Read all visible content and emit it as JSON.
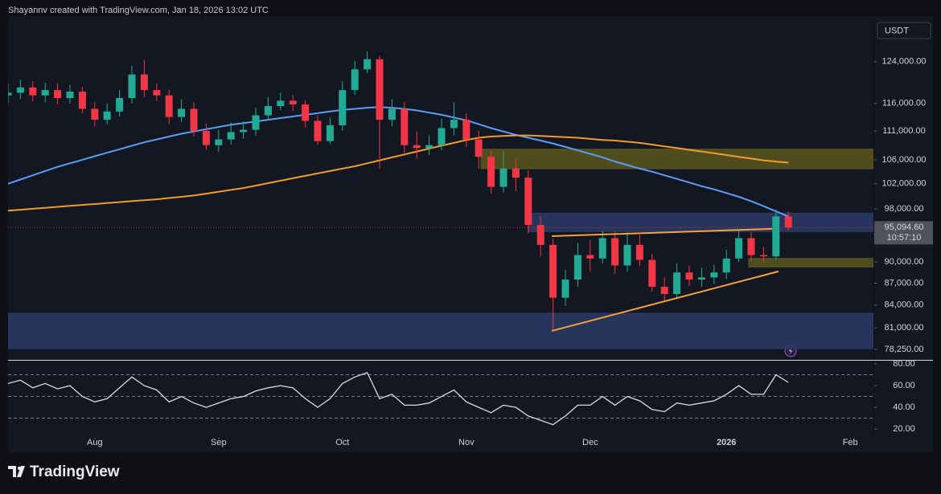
{
  "header": {
    "attribution": "Shayannv created with TradingView.com, Jan 18, 2026 13:02 UTC"
  },
  "footer": {
    "brand": "TradingView"
  },
  "chart_data": [
    {
      "type": "candlestick",
      "currency": "USDT",
      "log_scale": true,
      "last_label": "95,094.60",
      "countdown": "10:57:10",
      "up_color": "#22ab94",
      "down_color": "#f23645",
      "categories": [
        null,
        null,
        null,
        null,
        null,
        null,
        null,
        "Aug",
        null,
        null,
        null,
        null,
        null,
        null,
        null,
        null,
        null,
        "Sep",
        null,
        null,
        null,
        null,
        null,
        null,
        null,
        null,
        null,
        "Oct",
        null,
        null,
        null,
        null,
        null,
        null,
        null,
        null,
        null,
        "Nov",
        null,
        null,
        null,
        null,
        null,
        null,
        null,
        null,
        null,
        "Dec",
        null,
        null,
        null,
        null,
        null,
        null,
        null,
        null,
        null,
        null,
        "2026",
        null,
        null,
        null,
        null,
        null,
        null,
        null,
        null,
        null,
        "Feb",
        null
      ],
      "open": [
        117500,
        118000,
        119000,
        117500,
        118500,
        117000,
        118200,
        115000,
        113000,
        114500,
        117000,
        121500,
        118500,
        117500,
        113500,
        115000,
        111000,
        108500,
        109500,
        110800,
        111200,
        113800,
        115500,
        116500,
        115800,
        112800,
        109200,
        112000,
        118500,
        122500,
        124500,
        113000,
        115000,
        108500,
        108000,
        108500,
        111500,
        113000,
        109500,
        106500,
        101500,
        104500,
        103000,
        95500,
        92500,
        85000,
        87500,
        91000,
        90500,
        93500,
        89500,
        92500,
        90300,
        86500,
        85500,
        88500,
        87500,
        87800,
        88500,
        90500,
        93500,
        91000,
        90800,
        96800,
        null,
        null,
        null,
        null,
        null,
        null
      ],
      "high": [
        119800,
        120500,
        120200,
        119900,
        119800,
        119500,
        119200,
        116200,
        116000,
        118500,
        123200,
        124400,
        119800,
        118600,
        116800,
        116200,
        112300,
        111200,
        112500,
        112700,
        115200,
        117200,
        118000,
        117600,
        116600,
        113800,
        113400,
        120200,
        124200,
        126100,
        125200,
        116800,
        116300,
        110900,
        110200,
        113200,
        116200,
        114200,
        111000,
        107500,
        107400,
        106000,
        104200,
        96800,
        93400,
        88900,
        92800,
        93200,
        94600,
        94500,
        94400,
        94000,
        91200,
        87800,
        89800,
        89500,
        89200,
        89600,
        91800,
        94800,
        94400,
        92200,
        97900,
        97600,
        null,
        null,
        null,
        null,
        null,
        null
      ],
      "low": [
        116000,
        116800,
        116400,
        116200,
        115800,
        116000,
        114200,
        111800,
        112200,
        113600,
        116000,
        117200,
        116400,
        112200,
        112600,
        110000,
        107600,
        107400,
        108600,
        109600,
        110200,
        112900,
        114800,
        114600,
        111600,
        108600,
        108700,
        111000,
        117600,
        121800,
        104500,
        111800,
        107200,
        106200,
        106800,
        107600,
        110200,
        108200,
        104500,
        100400,
        100600,
        100800,
        94200,
        90800,
        80600,
        83900,
        86500,
        88600,
        89800,
        88300,
        88600,
        89400,
        85800,
        84400,
        84800,
        86600,
        86500,
        86900,
        87600,
        90000,
        90200,
        89900,
        90300,
        94600,
        null,
        null,
        null,
        null,
        null,
        null
      ],
      "close": [
        118000,
        119000,
        117500,
        118500,
        117000,
        118200,
        115000,
        113000,
        114500,
        117000,
        121500,
        118500,
        117500,
        113500,
        115000,
        111000,
        108500,
        109500,
        110800,
        111200,
        113800,
        115500,
        116500,
        115800,
        112800,
        109200,
        112000,
        118500,
        122500,
        124500,
        113000,
        115000,
        108500,
        108000,
        108500,
        111500,
        113000,
        109500,
        106500,
        101500,
        104500,
        103000,
        95500,
        92500,
        85000,
        87500,
        91000,
        90500,
        93500,
        89500,
        92500,
        90300,
        86500,
        85500,
        88500,
        87500,
        87800,
        88500,
        90500,
        93500,
        91000,
        90800,
        96800,
        95094.6,
        null,
        null,
        null,
        null,
        null,
        null
      ],
      "series": [
        {
          "color": "#5b9cf6",
          "values": [
            102000,
            102700,
            103400,
            104100,
            104800,
            105400,
            106000,
            106600,
            107200,
            107800,
            108400,
            109000,
            109500,
            110000,
            110500,
            110900,
            111300,
            111700,
            112100,
            112400,
            112700,
            113000,
            113300,
            113600,
            113900,
            114200,
            114500,
            114800,
            115000,
            115200,
            115300,
            115200,
            115000,
            114700,
            114300,
            113900,
            113400,
            112900,
            112200,
            111500,
            110900,
            110300,
            109800,
            109300,
            108800,
            108200,
            107600,
            107000,
            106400,
            105700,
            105100,
            104500,
            104000,
            103400,
            102800,
            102200,
            101600,
            101100,
            100500,
            99900,
            99200,
            98400,
            97600,
            96800,
            null,
            null,
            null,
            null,
            null,
            null
          ]
        },
        {
          "color": "#f29b2c",
          "values": [
            97700,
            97850,
            98000,
            98150,
            98300,
            98450,
            98600,
            98750,
            98900,
            99050,
            99200,
            99350,
            99500,
            99700,
            99900,
            100100,
            100400,
            100700,
            101000,
            101300,
            101700,
            102100,
            102500,
            102900,
            103300,
            103700,
            104100,
            104500,
            104900,
            105400,
            105900,
            106400,
            106900,
            107400,
            107900,
            108400,
            108900,
            109400,
            109800,
            110000,
            110100,
            110200,
            110200,
            110100,
            110000,
            109900,
            109800,
            109600,
            109400,
            109300,
            109100,
            108900,
            108600,
            108300,
            108000,
            107700,
            107400,
            107100,
            106800,
            106500,
            106200,
            105900,
            105700,
            105500,
            null,
            null,
            null,
            null,
            null,
            null
          ]
        }
      ],
      "zones": [
        {
          "low": 78350,
          "high": 82900,
          "from": 0,
          "color": "#2b3a66"
        },
        {
          "low": 104500,
          "high": 107800,
          "from": 38.2,
          "color": "#5a561d"
        },
        {
          "low": 94500,
          "high": 97300,
          "from": 42,
          "color": "#2b3a66"
        },
        {
          "low": 89300,
          "high": 90500,
          "from": 59.8,
          "color": "#5a561d"
        }
      ],
      "trendlines": [
        {
          "x": [
            43.9,
            62.2
          ],
          "y": [
            80600,
            88650
          ],
          "color": "#f7a23c"
        },
        {
          "x": [
            43.9,
            61.7
          ],
          "y": [
            93800,
            94900
          ],
          "color": "#f7a23c"
        }
      ],
      "ylim": [
        76950,
        133400
      ],
      "yticks": [
        {
          "value": 124000,
          "label": "124,000.00"
        },
        {
          "value": 116000,
          "label": "116,000.00"
        },
        {
          "value": 111000,
          "label": "111,000.00"
        },
        {
          "value": 106000,
          "label": "106,000.00"
        },
        {
          "value": 102000,
          "label": "102,000.00"
        },
        {
          "value": 98000,
          "label": "98,000.00"
        },
        {
          "value": 90000,
          "label": "90,000.00"
        },
        {
          "value": 87000,
          "label": "87,000.00"
        },
        {
          "value": 84000,
          "label": "84,000.00"
        },
        {
          "value": 81000,
          "label": "81,000.00"
        },
        {
          "value": 78250,
          "label": "78,250.00"
        }
      ]
    },
    {
      "type": "line",
      "color": "#d9dde8",
      "values": [
        62,
        65,
        58,
        62,
        57,
        60,
        50,
        45,
        48,
        58,
        68,
        60,
        56,
        45,
        50,
        44,
        40,
        44,
        48,
        50,
        55,
        58,
        60,
        58,
        48,
        40,
        48,
        62,
        68,
        72,
        48,
        52,
        42,
        42,
        44,
        50,
        56,
        45,
        40,
        35,
        42,
        40,
        32,
        28,
        24,
        32,
        42,
        42,
        50,
        42,
        50,
        46,
        38,
        36,
        44,
        42,
        44,
        46,
        52,
        60,
        52,
        52,
        70,
        63,
        null,
        null,
        null,
        null,
        null,
        null
      ],
      "levels": [
        70,
        50,
        30
      ],
      "ylim": [
        11.9,
        83.0
      ],
      "yticks": [
        {
          "value": 80,
          "label": "80.00"
        },
        {
          "value": 60,
          "label": "60.00"
        },
        {
          "value": 40,
          "label": "40.00"
        },
        {
          "value": 20,
          "label": "20.00"
        }
      ]
    }
  ]
}
